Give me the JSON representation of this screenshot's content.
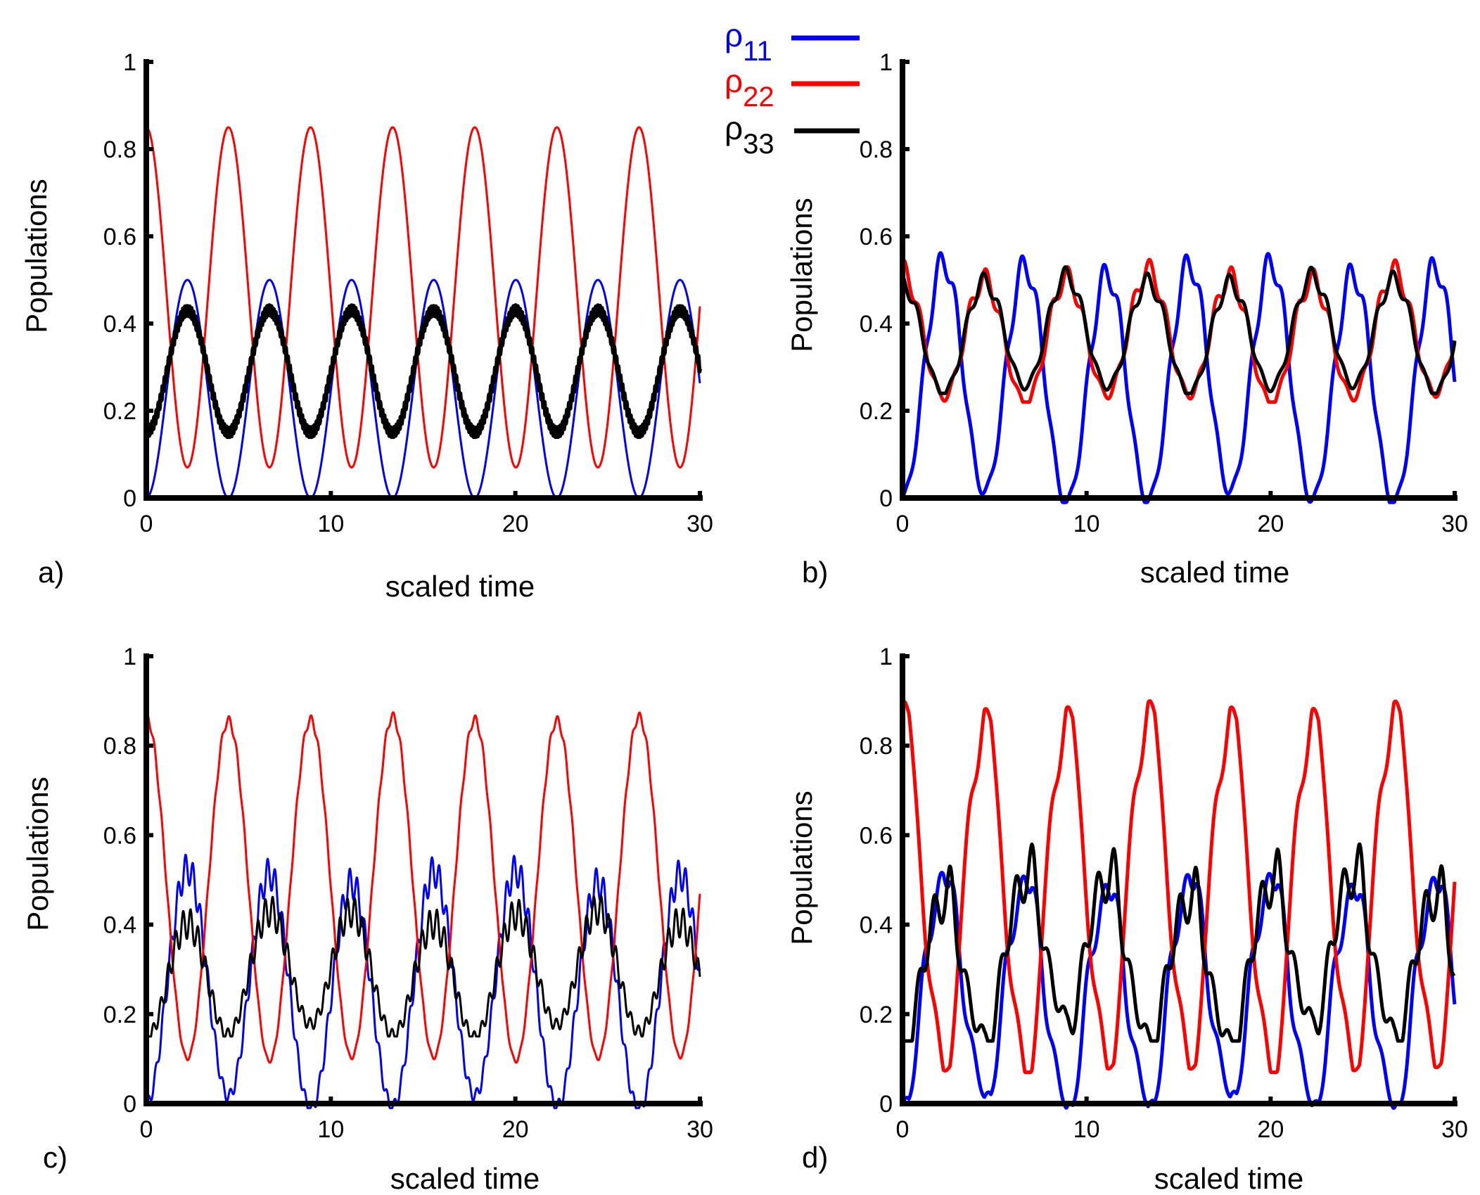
{
  "chart_data": [
    {
      "panel": "a)",
      "type": "line",
      "xlabel": "scaled time",
      "ylabel": "Populations",
      "xlim": [
        0,
        30
      ],
      "ylim": [
        0,
        1
      ],
      "xticks": [
        "0",
        "10",
        "20",
        "30"
      ],
      "yticks": [
        "0",
        "0.2",
        "0.4",
        "0.6",
        "0.8",
        "1"
      ],
      "grid": false,
      "period": 4.45,
      "series": [
        {
          "name": "ρ11",
          "color": "#0000ff",
          "description": "smooth oscillation",
          "min": 0.0,
          "max": 0.5,
          "start": 0.0,
          "ripple": 0.0
        },
        {
          "name": "ρ22",
          "color": "#ff0000",
          "description": "smooth oscillation",
          "min": 0.07,
          "max": 0.85,
          "start": 0.85,
          "ripple": 0.0
        },
        {
          "name": "ρ33",
          "color": "#000000",
          "description": "smooth oscillation with fine fast ripple (thick band)",
          "min": 0.15,
          "max": 0.43,
          "start": 0.15,
          "ripple": 0.012
        }
      ]
    },
    {
      "panel": "b)",
      "type": "line",
      "xlabel": "scaled time",
      "ylabel": "Populations",
      "xlim": [
        0,
        30
      ],
      "ylim": [
        0,
        1
      ],
      "xticks": [
        "0",
        "10",
        "20",
        "30"
      ],
      "yticks": [
        "0",
        "0.2",
        "0.4",
        "0.6",
        "0.8",
        "1"
      ],
      "grid": false,
      "period": 4.45,
      "series": [
        {
          "name": "ρ11",
          "color": "#0000ff",
          "description": "oscillation with slow ripple, peaks 0.5–0.57",
          "min": 0.0,
          "max": 0.53,
          "start": 0.0,
          "ripple": 0.03
        },
        {
          "name": "ρ22",
          "color": "#ff0000",
          "description": "anti-phase to ρ11, ripple",
          "min": 0.23,
          "max": 0.51,
          "start": 0.51,
          "ripple": 0.025
        },
        {
          "name": "ρ33",
          "color": "#000000",
          "description": "nearly overlaps ρ22",
          "min": 0.25,
          "max": 0.5,
          "start": 0.5,
          "ripple": 0.02
        }
      ]
    },
    {
      "panel": "c)",
      "type": "line",
      "xlabel": "scaled time",
      "ylabel": "Populations",
      "xlim": [
        0,
        30
      ],
      "ylim": [
        0,
        1
      ],
      "xticks": [
        "0",
        "10",
        "20",
        "30"
      ],
      "yticks": [
        "0",
        "0.2",
        "0.4",
        "0.6",
        "0.8",
        "1"
      ],
      "grid": false,
      "period": 4.45,
      "series": [
        {
          "name": "ρ11",
          "color": "#0000ff",
          "description": "oscillation with fast ripple, peaks 0.52–0.57",
          "min": 0.0,
          "max": 0.51,
          "start": 0.0,
          "ripple": 0.035
        },
        {
          "name": "ρ22",
          "color": "#ff0000",
          "description": "smooth oscillation, small ripple at troughs",
          "min": 0.1,
          "max": 0.86,
          "start": 0.86,
          "ripple": 0.01
        },
        {
          "name": "ρ33",
          "color": "#000000",
          "description": "oscillation with strong fast ripple",
          "min": 0.16,
          "max": 0.42,
          "start": 0.16,
          "ripple": 0.035
        }
      ]
    },
    {
      "panel": "d)",
      "type": "line",
      "xlabel": "scaled time",
      "ylabel": "Populations",
      "xlim": [
        0,
        30
      ],
      "ylim": [
        0,
        1
      ],
      "xticks": [
        "0",
        "10",
        "20",
        "30"
      ],
      "yticks": [
        "0",
        "0.2",
        "0.4",
        "0.6",
        "0.8",
        "1"
      ],
      "grid": false,
      "period": 4.45,
      "series": [
        {
          "name": "ρ11",
          "color": "#0000ff",
          "description": "stepped oscillation, peaks ~0.5–0.56",
          "min": 0.0,
          "max": 0.5,
          "start": 0.0,
          "ripple": 0.03
        },
        {
          "name": "ρ22",
          "color": "#ff0000",
          "description": "stepped oscillation with shoulders at ~0.7 and ~0.12",
          "min": 0.08,
          "max": 0.87,
          "start": 0.86,
          "ripple": 0.02
        },
        {
          "name": "ρ33",
          "color": "#000000",
          "description": "irregular oscillation with strong ripple",
          "min": 0.15,
          "max": 0.5,
          "start": 0.15,
          "ripple": 0.06
        }
      ]
    }
  ],
  "legend": {
    "placement": "top-center",
    "entries": [
      {
        "symbol": "ρ",
        "subscript": "11",
        "color": "#0000ff"
      },
      {
        "symbol": "ρ",
        "subscript": "22",
        "color": "#ff0000"
      },
      {
        "symbol": "ρ",
        "subscript": "33",
        "color": "#000000"
      }
    ]
  }
}
